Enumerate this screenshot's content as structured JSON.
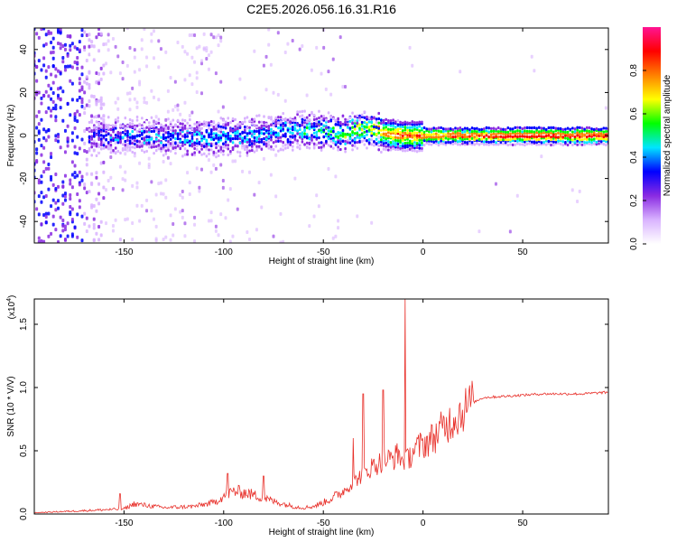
{
  "title": "C2E5.2026.056.16.31.R16",
  "chart_data": [
    {
      "type": "heatmap",
      "xlabel": "Height of straight line (km)",
      "ylabel": "Frequency (Hz)",
      "xlim": [
        -195,
        93
      ],
      "ylim": [
        -50,
        50
      ],
      "xticks": [
        -150,
        -100,
        -50,
        0,
        50
      ],
      "yticks": [
        -40,
        -20,
        0,
        20,
        40
      ],
      "colorbar": {
        "label": "Normalized spectral amplitude",
        "range": [
          0.0,
          1.0
        ],
        "ticks": [
          "0.0",
          "0.2",
          "0.4",
          "0.6",
          "0.8"
        ],
        "colormap": [
          "#ffffff",
          "#d9b3ff",
          "#8a2be2",
          "#0000ff",
          "#00e5ff",
          "#00ff00",
          "#ffff00",
          "#ff8000",
          "#ff0000",
          "#ff1493"
        ]
      },
      "ridge": [
        {
          "x": -165,
          "freq": 0,
          "amp": 0.35
        },
        {
          "x": -140,
          "freq": 0,
          "amp": 0.4
        },
        {
          "x": -110,
          "freq": -1,
          "amp": 0.45
        },
        {
          "x": -90,
          "freq": 0,
          "amp": 0.45
        },
        {
          "x": -70,
          "freq": 2,
          "amp": 0.45
        },
        {
          "x": -55,
          "freq": 3,
          "amp": 0.5
        },
        {
          "x": -40,
          "freq": 1,
          "amp": 0.6
        },
        {
          "x": -30,
          "freq": 4,
          "amp": 0.65
        },
        {
          "x": -20,
          "freq": 1,
          "amp": 0.8
        },
        {
          "x": -10,
          "freq": 0,
          "amp": 0.85
        },
        {
          "x": 0,
          "freq": 0,
          "amp": 0.85
        },
        {
          "x": 20,
          "freq": 0,
          "amp": 0.9
        },
        {
          "x": 50,
          "freq": 0,
          "amp": 0.95
        },
        {
          "x": 90,
          "freq": 0,
          "amp": 0.95
        }
      ]
    },
    {
      "type": "line",
      "xlabel": "Height of straight line (km)",
      "ylabel": "SNR (10 * V/V)",
      "y_multiplier": "(x10",
      "y_multiplier_exp": "4",
      "y_multiplier_close": ")",
      "xlim": [
        -195,
        93
      ],
      "ylim": [
        0,
        1.7
      ],
      "xticks": [
        -150,
        -100,
        -50,
        0,
        50
      ],
      "yticks": [
        "0.0",
        "0.5",
        "1.0",
        "1.5"
      ],
      "series": [
        {
          "color": "#e8302a",
          "x": [
            -195,
            -180,
            -165,
            -150,
            -145,
            -130,
            -115,
            -105,
            -100,
            -95,
            -90,
            -85,
            -80,
            -75,
            -70,
            -65,
            -60,
            -55,
            -50,
            -45,
            -40,
            -35,
            -30,
            -25,
            -20,
            -15,
            -12,
            -10,
            -8,
            -5,
            0,
            5,
            10,
            15,
            20,
            25,
            30,
            40,
            50,
            60,
            70,
            80,
            90,
            93
          ],
          "y": [
            0.01,
            0.02,
            0.03,
            0.04,
            0.08,
            0.05,
            0.06,
            0.09,
            0.14,
            0.18,
            0.17,
            0.15,
            0.13,
            0.1,
            0.08,
            0.06,
            0.05,
            0.06,
            0.09,
            0.13,
            0.18,
            0.25,
            0.32,
            0.38,
            0.42,
            0.44,
            0.48,
            0.4,
            0.42,
            0.5,
            0.55,
            0.6,
            0.68,
            0.75,
            0.82,
            0.88,
            0.92,
            0.93,
            0.94,
            0.95,
            0.95,
            0.95,
            0.96,
            0.96
          ]
        }
      ],
      "spikes": [
        {
          "x": -152,
          "y": 0.16
        },
        {
          "x": -98,
          "y": 0.32
        },
        {
          "x": -80,
          "y": 0.3
        },
        {
          "x": -35,
          "y": 0.6
        },
        {
          "x": -30,
          "y": 0.95
        },
        {
          "x": -20,
          "y": 0.98
        },
        {
          "x": -9,
          "y": 1.7
        },
        {
          "x": 25,
          "y": 0.99
        }
      ]
    }
  ]
}
